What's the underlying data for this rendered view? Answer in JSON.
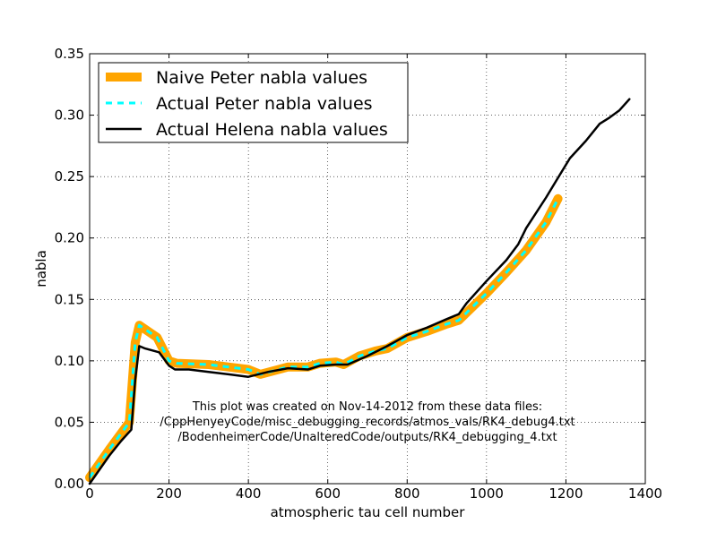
{
  "chart_data": {
    "type": "line",
    "xlabel": "atmospheric tau cell number",
    "ylabel": "nabla",
    "xlim": [
      0,
      1400
    ],
    "ylim": [
      0,
      0.35
    ],
    "x_ticks": [
      0,
      200,
      400,
      600,
      800,
      1000,
      1200,
      1400
    ],
    "x_tick_labels": [
      "0",
      "200",
      "400",
      "600",
      "800",
      "1000",
      "1200",
      "1400"
    ],
    "y_ticks": [
      0,
      0.05,
      0.1,
      0.15,
      0.2,
      0.25,
      0.3,
      0.35
    ],
    "y_tick_labels": [
      "0.00",
      "0.05",
      "0.10",
      "0.15",
      "0.20",
      "0.25",
      "0.30",
      "0.35"
    ],
    "grid": true,
    "legend_position": "upper-left",
    "annotation_lines": [
      "This plot was created on Nov-14-2012 from these data files:",
      "/CppHenyeyCode/misc_debugging_records/atmos_vals/RK4_debug4.txt",
      "/BodenheimerCode/UnalteredCode/outputs/RK4_debugging_4.txt"
    ],
    "series": [
      {
        "name": "Naive Peter nabla values",
        "color": "#ffa500",
        "style": "thick-solid",
        "points": [
          [
            0,
            0.005
          ],
          [
            50,
            0.028
          ],
          [
            100,
            0.05
          ],
          [
            115,
            0.115
          ],
          [
            125,
            0.129
          ],
          [
            170,
            0.119
          ],
          [
            200,
            0.1
          ],
          [
            220,
            0.098
          ],
          [
            300,
            0.097
          ],
          [
            400,
            0.093
          ],
          [
            430,
            0.089
          ],
          [
            500,
            0.095
          ],
          [
            550,
            0.095
          ],
          [
            580,
            0.098
          ],
          [
            620,
            0.099
          ],
          [
            640,
            0.097
          ],
          [
            680,
            0.104
          ],
          [
            720,
            0.108
          ],
          [
            750,
            0.11
          ],
          [
            800,
            0.119
          ],
          [
            850,
            0.124
          ],
          [
            900,
            0.13
          ],
          [
            930,
            0.133
          ],
          [
            1000,
            0.155
          ],
          [
            1050,
            0.172
          ],
          [
            1100,
            0.19
          ],
          [
            1150,
            0.213
          ],
          [
            1180,
            0.232
          ]
        ]
      },
      {
        "name": "Actual Peter nabla values",
        "color": "#00ffff",
        "style": "dashed",
        "points": [
          [
            0,
            0.005
          ],
          [
            50,
            0.028
          ],
          [
            100,
            0.05
          ],
          [
            115,
            0.115
          ],
          [
            125,
            0.129
          ],
          [
            170,
            0.119
          ],
          [
            200,
            0.1
          ],
          [
            220,
            0.098
          ],
          [
            300,
            0.097
          ],
          [
            400,
            0.093
          ],
          [
            430,
            0.089
          ],
          [
            500,
            0.095
          ],
          [
            550,
            0.095
          ],
          [
            580,
            0.098
          ],
          [
            620,
            0.099
          ],
          [
            640,
            0.097
          ],
          [
            680,
            0.104
          ],
          [
            720,
            0.108
          ],
          [
            750,
            0.11
          ],
          [
            800,
            0.119
          ],
          [
            850,
            0.124
          ],
          [
            900,
            0.13
          ],
          [
            930,
            0.133
          ],
          [
            1000,
            0.155
          ],
          [
            1050,
            0.172
          ],
          [
            1100,
            0.19
          ],
          [
            1150,
            0.213
          ],
          [
            1180,
            0.232
          ]
        ]
      },
      {
        "name": "Actual Helena nabla values",
        "color": "#000000",
        "style": "solid",
        "points": [
          [
            0,
            0.0
          ],
          [
            50,
            0.023
          ],
          [
            80,
            0.035
          ],
          [
            105,
            0.044
          ],
          [
            115,
            0.085
          ],
          [
            125,
            0.112
          ],
          [
            140,
            0.11
          ],
          [
            175,
            0.107
          ],
          [
            200,
            0.096
          ],
          [
            215,
            0.093
          ],
          [
            250,
            0.093
          ],
          [
            300,
            0.091
          ],
          [
            350,
            0.089
          ],
          [
            400,
            0.087
          ],
          [
            450,
            0.091
          ],
          [
            500,
            0.094
          ],
          [
            550,
            0.093
          ],
          [
            580,
            0.096
          ],
          [
            620,
            0.097
          ],
          [
            650,
            0.097
          ],
          [
            700,
            0.104
          ],
          [
            750,
            0.112
          ],
          [
            800,
            0.121
          ],
          [
            850,
            0.127
          ],
          [
            900,
            0.134
          ],
          [
            930,
            0.138
          ],
          [
            950,
            0.147
          ],
          [
            1000,
            0.165
          ],
          [
            1050,
            0.182
          ],
          [
            1080,
            0.195
          ],
          [
            1100,
            0.208
          ],
          [
            1150,
            0.233
          ],
          [
            1180,
            0.249
          ],
          [
            1210,
            0.265
          ],
          [
            1250,
            0.279
          ],
          [
            1285,
            0.293
          ],
          [
            1310,
            0.298
          ],
          [
            1335,
            0.304
          ],
          [
            1360,
            0.313
          ]
        ]
      }
    ]
  }
}
